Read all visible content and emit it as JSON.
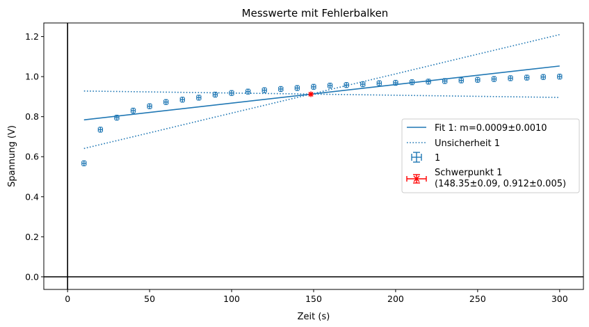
{
  "chart_data": {
    "type": "scatter",
    "title": "Messwerte mit Fehlerbalken",
    "xlabel": "Zeit (s)",
    "ylabel": "Spannung (V)",
    "xlim": [
      -14.5,
      314.5
    ],
    "ylim": [
      -0.063,
      1.268
    ],
    "xticks": [
      0,
      50,
      100,
      150,
      200,
      250,
      300
    ],
    "yticks": [
      0.0,
      0.2,
      0.4,
      0.6,
      0.8,
      1.0,
      1.2
    ],
    "xtick_labels": [
      "0",
      "50",
      "100",
      "150",
      "200",
      "250",
      "300"
    ],
    "ytick_labels": [
      "0.0",
      "0.2",
      "0.4",
      "0.6",
      "0.8",
      "1.0",
      "1.2"
    ],
    "grid": false,
    "reference_lines": {
      "x": 0,
      "y": 0
    },
    "legend_position": "center-right",
    "colors": {
      "series": "#1f77b4",
      "centroid": "#ff0000",
      "axes": "#000000"
    },
    "series": [
      {
        "name": "1",
        "kind": "errorbar",
        "x": [
          10,
          20,
          30,
          40,
          50,
          60,
          70,
          80,
          90,
          100,
          110,
          120,
          130,
          140,
          150,
          160,
          170,
          180,
          190,
          200,
          210,
          220,
          230,
          240,
          250,
          260,
          270,
          280,
          290,
          300
        ],
        "y": [
          0.567,
          0.735,
          0.795,
          0.83,
          0.852,
          0.873,
          0.885,
          0.895,
          0.91,
          0.918,
          0.925,
          0.932,
          0.938,
          0.943,
          0.949,
          0.955,
          0.958,
          0.962,
          0.967,
          0.969,
          0.972,
          0.975,
          0.978,
          0.981,
          0.984,
          0.988,
          0.992,
          0.995,
          0.998,
          1.0
        ]
      },
      {
        "name": "Fit 1: m=0.0009±0.0010",
        "kind": "line",
        "x": [
          10,
          300
        ],
        "y": [
          0.784,
          1.053
        ]
      },
      {
        "name": "Unsicherheit 1",
        "kind": "dotted",
        "lines": [
          {
            "x": [
              10,
              300
            ],
            "y": [
              0.641,
              1.21
            ]
          },
          {
            "x": [
              10,
              300
            ],
            "y": [
              0.928,
              0.896
            ]
          }
        ]
      },
      {
        "name": "Schwerpunkt 1\n(148.35±0.09, 0.912±0.005)",
        "kind": "centroid",
        "x": [
          148.35
        ],
        "y": [
          0.912
        ]
      }
    ],
    "legend": [
      {
        "label": "Fit 1: m=0.0009±0.0010",
        "symbol": "line"
      },
      {
        "label": "Unsicherheit 1",
        "symbol": "dotted"
      },
      {
        "label": "1",
        "symbol": "errorbar"
      },
      {
        "label": "Schwerpunkt 1",
        "label2": "(148.35±0.09, 0.912±0.005)",
        "symbol": "centroid"
      }
    ]
  }
}
